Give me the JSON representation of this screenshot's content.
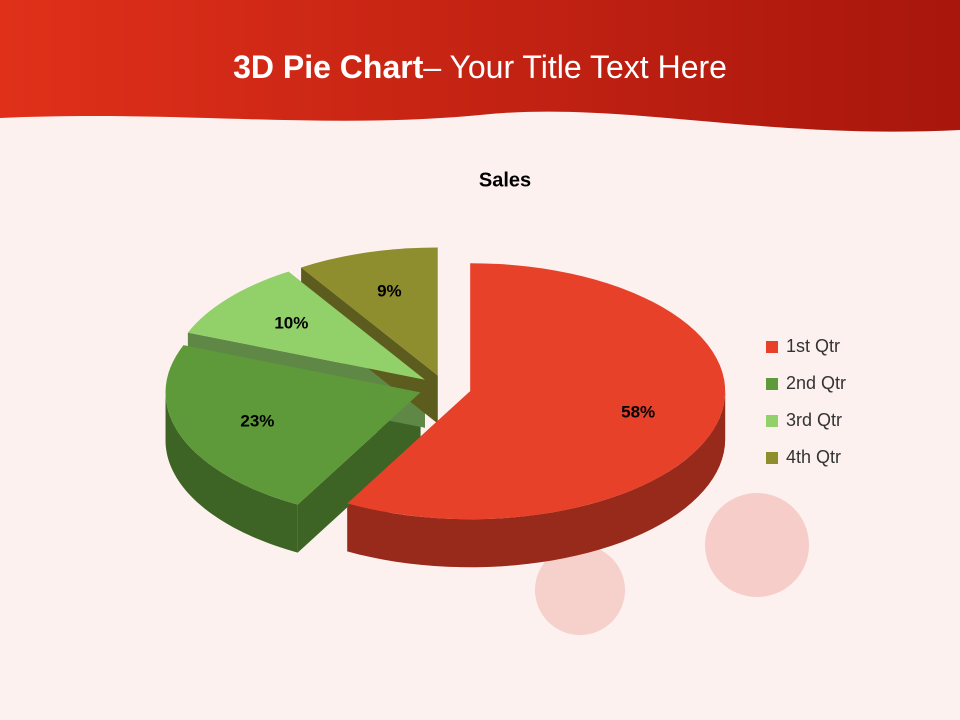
{
  "slide": {
    "title_bold": "3D Pie Chart",
    "title_rest": "– Your Title Text Here"
  },
  "chart_data": {
    "type": "pie3d",
    "title": "Sales",
    "categories": [
      "1st Qtr",
      "2nd Qtr",
      "3rd Qtr",
      "4th Qtr"
    ],
    "values": [
      58,
      23,
      10,
      9
    ],
    "value_labels": [
      "58%",
      "23%",
      "10%",
      "9%"
    ],
    "colors": [
      "#e8412a",
      "#5e9a3a",
      "#92d06a",
      "#8e8e2e"
    ],
    "legend": "right"
  }
}
